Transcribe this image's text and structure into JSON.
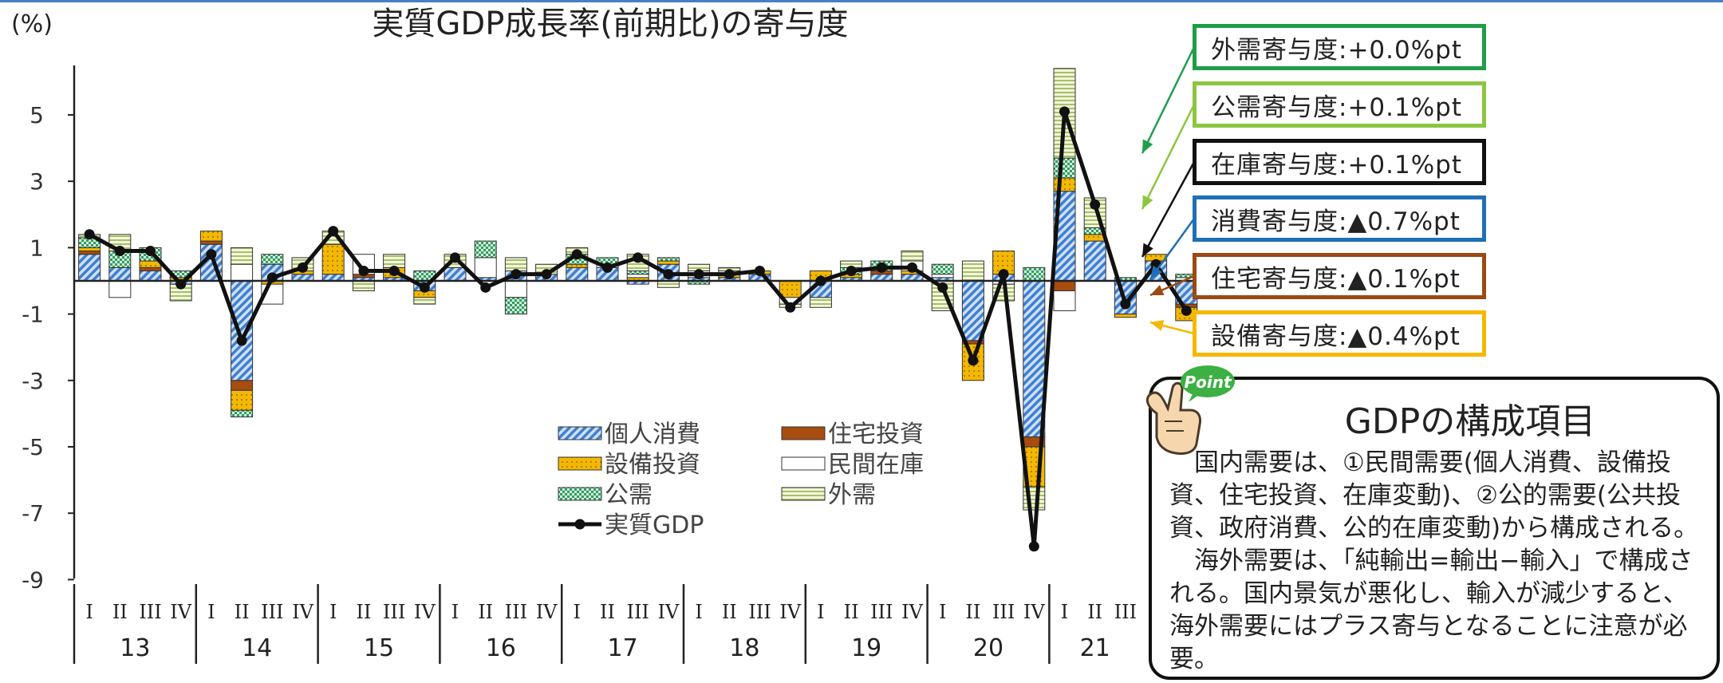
{
  "chart_data": {
    "type": "bar",
    "title": "実質GDP成長率(前期比)の寄与度",
    "ylabel": "(%)",
    "ylim": [
      -9,
      6.5
    ],
    "yticks": [
      5,
      3,
      1,
      -1,
      -3,
      -5,
      -7,
      -9
    ],
    "quarter_labels": [
      "I",
      "II",
      "III",
      "IV"
    ],
    "years": [
      "13",
      "14",
      "15",
      "16",
      "17",
      "18",
      "19",
      "20",
      "21"
    ],
    "quarters_in_last_year": 3,
    "legend": [
      "個人消費",
      "住宅投資",
      "設備投資",
      "民間在庫",
      "公需",
      "外需",
      "実質GDP"
    ],
    "series": [
      {
        "name": "個人消費",
        "color": "#3f7fcf",
        "pattern": "diag",
        "values": [
          0.8,
          0.4,
          0.3,
          -0.1,
          1.1,
          -3.0,
          0.5,
          0.2,
          0.2,
          0.1,
          0.1,
          -0.3,
          0.4,
          0.1,
          0.3,
          0.2,
          0.4,
          0.4,
          -0.1,
          0.5,
          0.1,
          0.1,
          0.2,
          0.0,
          -0.5,
          0.1,
          0.2,
          0.2,
          0.1,
          -1.8,
          0.2,
          -4.7,
          2.7,
          1.2,
          -1.0,
          0.6,
          -0.7
        ]
      },
      {
        "name": "住宅投資",
        "color": "#a64d0f",
        "pattern": "solid",
        "values": [
          0.1,
          0.0,
          0.1,
          0.0,
          0.1,
          -0.3,
          0.0,
          0.0,
          0.0,
          0.1,
          0.0,
          0.0,
          0.0,
          0.0,
          0.0,
          0.0,
          0.0,
          0.0,
          0.0,
          0.0,
          0.0,
          0.0,
          0.0,
          0.0,
          0.0,
          0.0,
          0.1,
          0.0,
          0.0,
          -0.1,
          0.0,
          -0.3,
          -0.3,
          0.0,
          0.0,
          0.0,
          -0.1
        ]
      },
      {
        "name": "設備投資",
        "color": "#f5b800",
        "pattern": "dots",
        "values": [
          0.1,
          0.0,
          0.2,
          0.1,
          0.3,
          -0.6,
          -0.1,
          0.1,
          0.9,
          0.0,
          0.3,
          -0.2,
          0.0,
          0.0,
          0.0,
          0.0,
          0.1,
          0.0,
          0.1,
          0.1,
          0.0,
          0.1,
          0.1,
          -0.5,
          0.3,
          0.1,
          0.0,
          0.1,
          0.0,
          -1.1,
          0.7,
          -1.2,
          0.4,
          0.2,
          -0.1,
          0.2,
          -0.4
        ]
      },
      {
        "name": "民間在庫",
        "color": "#ffffff",
        "pattern": "hollow",
        "values": [
          0.0,
          -0.5,
          0.0,
          0.0,
          0.0,
          0.5,
          -0.6,
          0.0,
          0.0,
          0.6,
          0.0,
          0.0,
          0.0,
          0.6,
          -0.5,
          0.0,
          0.0,
          0.1,
          0.1,
          0.0,
          0.2,
          0.1,
          0.0,
          -0.2,
          0.0,
          0.0,
          0.0,
          0.3,
          0.1,
          0.0,
          -0.1,
          0.0,
          -0.6,
          0.0,
          0.0,
          0.0,
          0.1
        ]
      },
      {
        "name": "公需",
        "color": "#2e9e5e",
        "pattern": "checker",
        "values": [
          0.3,
          0.5,
          0.4,
          0.2,
          0.0,
          -0.2,
          0.3,
          0.0,
          0.0,
          0.0,
          0.0,
          0.3,
          0.0,
          0.5,
          -0.5,
          0.0,
          0.3,
          0.2,
          0.1,
          0.1,
          -0.1,
          0.0,
          0.0,
          0.0,
          0.0,
          0.2,
          0.3,
          0.0,
          0.3,
          0.0,
          0.0,
          0.4,
          0.6,
          0.2,
          0.1,
          0.0,
          0.1
        ]
      },
      {
        "name": "外需",
        "color": "#b5c97a",
        "pattern": "hlines",
        "values": [
          0.1,
          0.5,
          0.0,
          -0.5,
          0.0,
          0.5,
          0.0,
          0.4,
          0.4,
          -0.3,
          0.4,
          -0.2,
          0.4,
          0.0,
          0.4,
          0.3,
          0.2,
          0.0,
          0.5,
          -0.2,
          0.2,
          0.1,
          0.0,
          -0.1,
          -0.3,
          0.2,
          0.0,
          0.3,
          -0.9,
          0.6,
          -0.5,
          -0.7,
          2.7,
          0.9,
          0.0,
          0.0,
          0.0
        ]
      },
      {
        "name": "実質GDP",
        "color": "#111111",
        "pattern": "line",
        "values": [
          1.4,
          0.9,
          0.9,
          -0.1,
          0.8,
          -1.8,
          0.1,
          0.4,
          1.5,
          0.3,
          0.3,
          -0.2,
          0.7,
          -0.2,
          0.2,
          0.2,
          0.8,
          0.4,
          0.7,
          0.2,
          0.2,
          0.2,
          0.3,
          -0.8,
          0.0,
          0.3,
          0.4,
          0.4,
          -0.2,
          -2.4,
          0.2,
          -8.0,
          5.1,
          2.3,
          -0.7,
          0.5,
          -0.9
        ]
      }
    ]
  },
  "callouts": [
    {
      "text": "外需寄与度:+0.0%pt",
      "color": "#1e9e48"
    },
    {
      "text": "公需寄与度:+0.1%pt",
      "color": "#8cc63f"
    },
    {
      "text": "在庫寄与度:+0.1%pt",
      "color": "#111111"
    },
    {
      "text": "消費寄与度:▲0.7%pt",
      "color": "#1f6fb4"
    },
    {
      "text": "住宅寄与度:▲0.1%pt",
      "color": "#9b4a12"
    },
    {
      "text": "設備寄与度:▲0.4%pt",
      "color": "#f5b800"
    }
  ],
  "point": {
    "badge": "Point",
    "title": "GDPの構成項目",
    "paragraphs": [
      "国内需要は、①民間需要(個人消費、設備投資、住宅投資、在庫変動)、②公的需要(公共投資、政府消費、公的在庫変動)から構成される。",
      "海外需要は、「純輸出=輸出−輸入」で構成される。国内景気が悪化し、輸入が減少すると、海外需要にはプラス寄与となることに注意が必要。"
    ]
  }
}
